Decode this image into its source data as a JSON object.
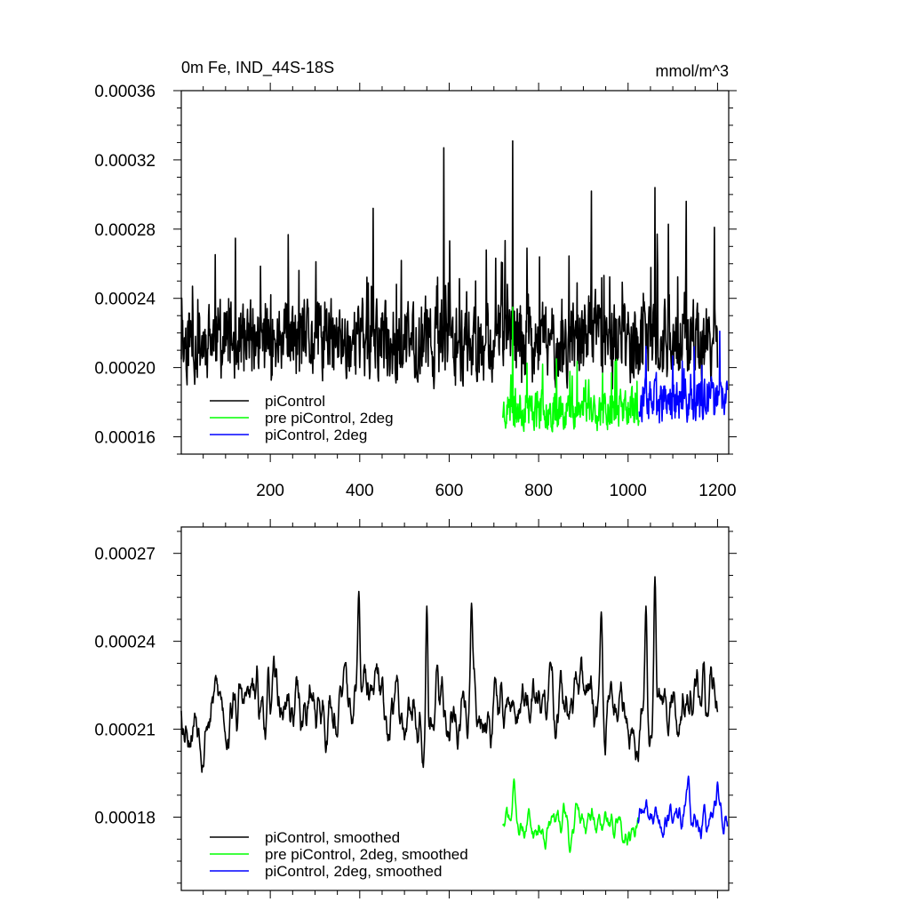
{
  "chart_data": [
    {
      "type": "line",
      "title_left": "0m Fe, IND_44S-18S",
      "title_right": "mmol/m^3",
      "xlim": [
        1,
        1225
      ],
      "ylim": [
        0.00015,
        0.00036
      ],
      "xticks": [
        200,
        400,
        600,
        800,
        1000,
        1200
      ],
      "xtick_labels": [
        "200",
        "400",
        "600",
        "800",
        "1000",
        "1200"
      ],
      "yticks": [
        0.00016,
        0.0002,
        0.00024,
        0.00028,
        0.00032,
        0.00036
      ],
      "ytick_labels": [
        "0.00016",
        "0.00020",
        "0.00024",
        "0.00028",
        "0.00032",
        "0.00036"
      ],
      "legend_position": "bottom-left",
      "series": [
        {
          "name": "piControl",
          "color": "#000000",
          "x_start": 1,
          "x_end": 1200,
          "base": 0.000215,
          "amp": 2.2e-05,
          "seed": 11,
          "spiky": true,
          "peaks": [
            [
              430,
              0.000292
            ],
            [
              588,
              0.000327
            ],
            [
              742,
              0.000331
            ],
            [
              918,
              0.000302
            ],
            [
              1060,
              0.000304
            ],
            [
              1130,
              0.000296
            ]
          ]
        },
        {
          "name": "pre piControl, 2deg",
          "color": "#00ff00",
          "x_start": 720,
          "x_end": 1025,
          "base": 0.000176,
          "amp": 1.1e-05,
          "seed": 23,
          "spiky": true,
          "peaks": [
            [
              742,
              0.000235
            ],
            [
              840,
              0.000205
            ],
            [
              912,
              0.000193
            ]
          ]
        },
        {
          "name": "piControl, 2deg",
          "color": "#0000ff",
          "x_start": 1025,
          "x_end": 1222,
          "base": 0.00018,
          "amp": 1.2e-05,
          "seed": 37,
          "spiky": true,
          "peaks": [
            [
              1148,
              0.000212
            ],
            [
              1205,
              0.000221
            ]
          ]
        }
      ]
    },
    {
      "type": "line",
      "xlim": [
        1,
        1225
      ],
      "ylim": [
        0.000155,
        0.000279
      ],
      "xticks": [
        200,
        400,
        600,
        800,
        1000,
        1200
      ],
      "yticks": [
        0.00018,
        0.00021,
        0.00024,
        0.00027
      ],
      "ytick_labels": [
        "0.00018",
        "0.00021",
        "0.00024",
        "0.00027"
      ],
      "legend_position": "bottom-left",
      "series": [
        {
          "name": "piControl, smoothed",
          "color": "#000000",
          "x_start": 1,
          "x_end": 1200,
          "base": 0.000218,
          "amp": 1.2e-05,
          "seed": 53,
          "spiky": false,
          "peaks": [
            [
              398,
              0.000257
            ],
            [
              1060,
              0.000262
            ],
            [
              1040,
              0.000252
            ],
            [
              650,
              0.000253
            ],
            [
              940,
              0.00025
            ],
            [
              550,
              0.000252
            ]
          ]
        },
        {
          "name": "pre piControl, 2deg, smoothed",
          "color": "#00ff00",
          "x_start": 720,
          "x_end": 1022,
          "base": 0.000178,
          "amp": 6e-06,
          "seed": 71,
          "spiky": false,
          "peaks": [
            [
              745,
              0.000193
            ],
            [
              870,
              0.000168
            ]
          ]
        },
        {
          "name": "piControl, 2deg, smoothed",
          "color": "#0000ff",
          "x_start": 1022,
          "x_end": 1222,
          "base": 0.00018,
          "amp": 7e-06,
          "seed": 89,
          "spiky": false,
          "peaks": [
            [
              1135,
              0.000194
            ],
            [
              1200,
              0.000192
            ]
          ]
        }
      ]
    }
  ]
}
